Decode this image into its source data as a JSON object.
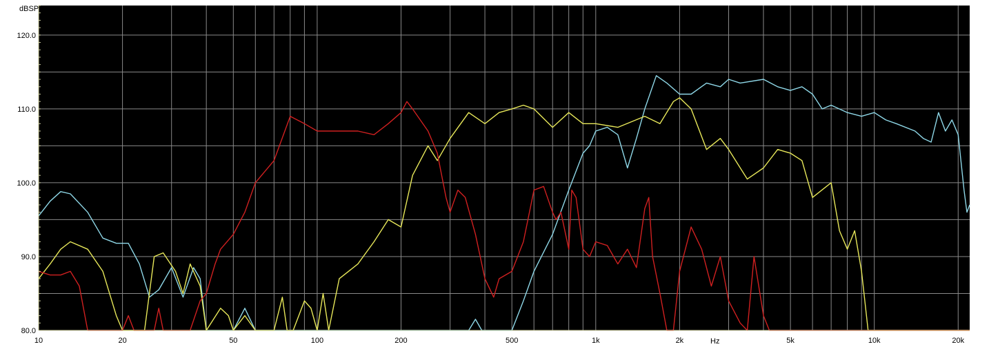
{
  "chart_data": {
    "type": "line",
    "ylabel": "dBSPL",
    "xunit": "Hz",
    "xscale": "log",
    "xlim": [
      10,
      22000
    ],
    "ylim": [
      80,
      124
    ],
    "yticks": [
      {
        "value": 80,
        "label": "80.0"
      },
      {
        "value": 90,
        "label": "90.0"
      },
      {
        "value": 100,
        "label": "100.0"
      },
      {
        "value": 110,
        "label": "110.0"
      },
      {
        "value": 120,
        "label": "120.0"
      }
    ],
    "xticks": [
      {
        "value": 10,
        "label": "10"
      },
      {
        "value": 20,
        "label": "20"
      },
      {
        "value": 50,
        "label": "50"
      },
      {
        "value": 100,
        "label": "100"
      },
      {
        "value": 200,
        "label": "200"
      },
      {
        "value": 500,
        "label": "500"
      },
      {
        "value": 1000,
        "label": "1k"
      },
      {
        "value": 2000,
        "label": "2k"
      },
      {
        "value": 5000,
        "label": "5k"
      },
      {
        "value": 10000,
        "label": "10k"
      },
      {
        "value": 20000,
        "label": "20k"
      }
    ],
    "grid": true,
    "background": "#000000",
    "grid_color": "#8a8a8a",
    "series": [
      {
        "color": "#8fd8e8",
        "points": [
          [
            10,
            95.5
          ],
          [
            11,
            97.5
          ],
          [
            12,
            98.8
          ],
          [
            13,
            98.5
          ],
          [
            15,
            96
          ],
          [
            17,
            92.5
          ],
          [
            19,
            91.8
          ],
          [
            21,
            91.8
          ],
          [
            23,
            89
          ],
          [
            25,
            84.5
          ],
          [
            27,
            85.5
          ],
          [
            30,
            88.5
          ],
          [
            33,
            84.5
          ],
          [
            36,
            88.5
          ],
          [
            38,
            87
          ],
          [
            40,
            80
          ],
          [
            45,
            80
          ],
          [
            50,
            80
          ],
          [
            55,
            83
          ],
          [
            60,
            80
          ],
          [
            70,
            80
          ],
          [
            100,
            80
          ],
          [
            200,
            80
          ],
          [
            300,
            80
          ],
          [
            350,
            80
          ],
          [
            370,
            81.5
          ],
          [
            390,
            80
          ],
          [
            500,
            80
          ],
          [
            550,
            84
          ],
          [
            600,
            88
          ],
          [
            700,
            93
          ],
          [
            800,
            99
          ],
          [
            900,
            104
          ],
          [
            950,
            105
          ],
          [
            1000,
            107
          ],
          [
            1100,
            107.5
          ],
          [
            1200,
            106.5
          ],
          [
            1300,
            102
          ],
          [
            1400,
            106
          ],
          [
            1500,
            110
          ],
          [
            1650,
            114.5
          ],
          [
            1800,
            113.5
          ],
          [
            2000,
            112
          ],
          [
            2200,
            112
          ],
          [
            2500,
            113.5
          ],
          [
            2800,
            113
          ],
          [
            3000,
            114
          ],
          [
            3300,
            113.5
          ],
          [
            4000,
            114
          ],
          [
            4500,
            113
          ],
          [
            5000,
            112.5
          ],
          [
            5500,
            113
          ],
          [
            6000,
            112
          ],
          [
            6500,
            110
          ],
          [
            7000,
            110.5
          ],
          [
            8000,
            109.5
          ],
          [
            9000,
            109
          ],
          [
            10000,
            109.5
          ],
          [
            11000,
            108.5
          ],
          [
            12000,
            108
          ],
          [
            14000,
            107
          ],
          [
            15000,
            106
          ],
          [
            16000,
            105.5
          ],
          [
            17000,
            109.5
          ],
          [
            18000,
            107
          ],
          [
            19000,
            108.5
          ],
          [
            20000,
            106.5
          ],
          [
            21000,
            99
          ],
          [
            21500,
            96
          ],
          [
            22000,
            97
          ]
        ]
      },
      {
        "color": "#e8e85a",
        "points": [
          [
            10,
            87
          ],
          [
            11,
            89
          ],
          [
            12,
            91
          ],
          [
            13,
            92
          ],
          [
            15,
            91
          ],
          [
            17,
            88
          ],
          [
            19,
            82
          ],
          [
            20,
            80
          ],
          [
            24,
            80
          ],
          [
            26,
            90
          ],
          [
            28,
            90.5
          ],
          [
            31,
            88
          ],
          [
            33,
            85
          ],
          [
            35,
            89
          ],
          [
            38,
            86
          ],
          [
            40,
            80
          ],
          [
            45,
            83
          ],
          [
            48,
            82
          ],
          [
            50,
            80
          ],
          [
            55,
            82
          ],
          [
            60,
            80
          ],
          [
            65,
            80
          ],
          [
            70,
            80
          ],
          [
            75,
            84.5
          ],
          [
            78,
            80
          ],
          [
            82,
            80
          ],
          [
            90,
            84
          ],
          [
            95,
            83
          ],
          [
            100,
            80
          ],
          [
            105,
            85
          ],
          [
            110,
            80
          ],
          [
            120,
            87
          ],
          [
            140,
            89
          ],
          [
            160,
            92
          ],
          [
            180,
            95
          ],
          [
            200,
            94
          ],
          [
            220,
            101
          ],
          [
            250,
            105
          ],
          [
            270,
            103
          ],
          [
            300,
            106
          ],
          [
            350,
            109.5
          ],
          [
            400,
            108
          ],
          [
            450,
            109.5
          ],
          [
            500,
            110
          ],
          [
            550,
            110.5
          ],
          [
            600,
            110
          ],
          [
            700,
            107.5
          ],
          [
            800,
            109.5
          ],
          [
            900,
            108
          ],
          [
            1000,
            108
          ],
          [
            1200,
            107.5
          ],
          [
            1500,
            109
          ],
          [
            1700,
            108
          ],
          [
            1900,
            111
          ],
          [
            2000,
            111.5
          ],
          [
            2200,
            110
          ],
          [
            2500,
            104.5
          ],
          [
            2800,
            106
          ],
          [
            3000,
            104.5
          ],
          [
            3500,
            100.5
          ],
          [
            4000,
            102
          ],
          [
            4500,
            104.5
          ],
          [
            5000,
            104
          ],
          [
            5500,
            103
          ],
          [
            6000,
            98
          ],
          [
            7000,
            100
          ],
          [
            7500,
            93.5
          ],
          [
            8000,
            91
          ],
          [
            8500,
            93.5
          ],
          [
            9000,
            88
          ],
          [
            9500,
            80
          ],
          [
            22000,
            80
          ]
        ]
      },
      {
        "color": "#d02020",
        "points": [
          [
            10,
            88
          ],
          [
            11,
            87.5
          ],
          [
            12,
            87.5
          ],
          [
            13,
            88
          ],
          [
            14,
            86
          ],
          [
            15,
            80
          ],
          [
            20,
            80
          ],
          [
            21,
            82
          ],
          [
            22,
            80
          ],
          [
            26,
            80
          ],
          [
            27,
            83
          ],
          [
            28,
            80
          ],
          [
            35,
            80
          ],
          [
            38,
            84
          ],
          [
            40,
            85
          ],
          [
            43,
            89
          ],
          [
            45,
            91
          ],
          [
            50,
            93
          ],
          [
            55,
            96
          ],
          [
            60,
            100
          ],
          [
            70,
            103
          ],
          [
            80,
            109
          ],
          [
            90,
            108
          ],
          [
            100,
            107
          ],
          [
            120,
            107
          ],
          [
            140,
            107
          ],
          [
            160,
            106.5
          ],
          [
            180,
            108
          ],
          [
            200,
            109.5
          ],
          [
            210,
            111
          ],
          [
            220,
            110
          ],
          [
            250,
            107
          ],
          [
            270,
            104
          ],
          [
            290,
            98
          ],
          [
            300,
            96
          ],
          [
            320,
            99
          ],
          [
            340,
            98
          ],
          [
            370,
            93
          ],
          [
            400,
            87
          ],
          [
            430,
            84.5
          ],
          [
            450,
            87
          ],
          [
            500,
            88
          ],
          [
            550,
            92
          ],
          [
            600,
            99
          ],
          [
            650,
            99.5
          ],
          [
            700,
            96
          ],
          [
            720,
            95
          ],
          [
            750,
            96
          ],
          [
            800,
            91
          ],
          [
            820,
            99
          ],
          [
            850,
            98
          ],
          [
            900,
            91
          ],
          [
            950,
            90
          ],
          [
            1000,
            92
          ],
          [
            1100,
            91.5
          ],
          [
            1200,
            89
          ],
          [
            1300,
            91
          ],
          [
            1400,
            88.5
          ],
          [
            1500,
            96.5
          ],
          [
            1550,
            98
          ],
          [
            1600,
            90
          ],
          [
            1700,
            85
          ],
          [
            1800,
            80
          ],
          [
            1900,
            80
          ],
          [
            2000,
            88
          ],
          [
            2200,
            94
          ],
          [
            2400,
            91
          ],
          [
            2600,
            86
          ],
          [
            2800,
            90
          ],
          [
            3000,
            84
          ],
          [
            3300,
            81
          ],
          [
            3500,
            80
          ],
          [
            3700,
            90
          ],
          [
            4000,
            82
          ],
          [
            4200,
            80
          ],
          [
            22000,
            80
          ]
        ]
      }
    ]
  }
}
